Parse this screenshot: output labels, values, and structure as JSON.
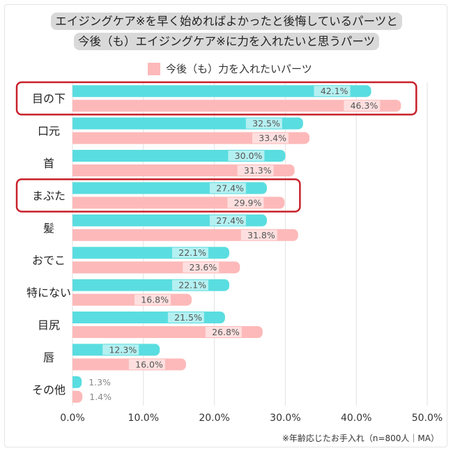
{
  "title_lines": [
    "エイジングケア※を早く始めればよかったと後悔しているパーツと",
    "今後（も）エイジングケア※に力を入れたいと思うパーツ"
  ],
  "footnote": "※年齢応じたお手入れ（n=800人｜MA）",
  "colors": {
    "regret": "#5adde0",
    "future": "#fdb9b9",
    "highlight": "#c8202a",
    "title_bg": "#d9d9d9"
  },
  "chart_data": {
    "type": "bar",
    "orientation": "horizontal",
    "categories": [
      "目の下",
      "口元",
      "首",
      "まぶた",
      "髪",
      "おでこ",
      "特にない",
      "目尻",
      "唇",
      "その他"
    ],
    "series": [
      {
        "values": [
          42.1,
          32.5,
          30.0,
          27.4,
          27.4,
          22.1,
          22.1,
          21.5,
          12.3,
          1.3
        ]
      },
      {
        "name": "今後（も）力を入れたいパーツ",
        "values": [
          46.3,
          33.4,
          31.3,
          29.9,
          31.8,
          23.6,
          16.8,
          26.8,
          16.0,
          1.4
        ]
      }
    ],
    "xlim": [
      0,
      50
    ],
    "xticks": [
      "0.0%",
      "10.0%",
      "20.0%",
      "30.0%",
      "40.0%",
      "50.0%"
    ],
    "grid": true,
    "legend": "top",
    "highlighted_categories": [
      "目の下",
      "まぶた"
    ]
  }
}
